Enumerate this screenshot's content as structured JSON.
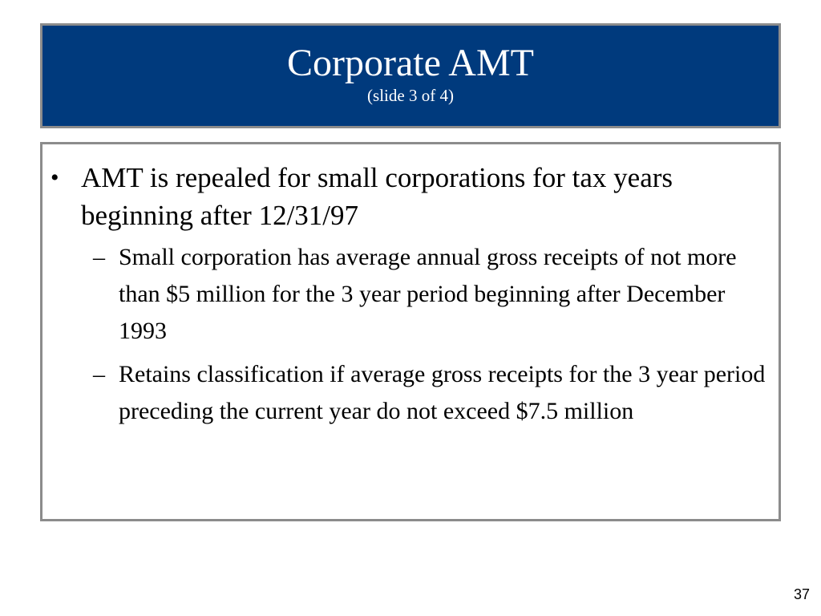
{
  "slide": {
    "title": "Corporate AMT",
    "subtitle": "(slide 3 of 4)",
    "page_number": "37",
    "colors": {
      "title_background": "#003a7d",
      "title_text": "#ffffff",
      "border": "#8c8c8c"
    }
  },
  "content": {
    "bullets": [
      {
        "marker": "•",
        "text": "AMT is repealed for small corporations for tax years beginning after 12/31/97",
        "sub_items": [
          {
            "marker": "–",
            "text": "Small corporation has average annual gross receipts of not more than $5 million for the 3 year period beginning after December 1993"
          },
          {
            "marker": "–",
            "text": "Retains classification if average gross receipts for the 3 year period preceding the current year do not exceed $7.5 million"
          }
        ]
      }
    ]
  }
}
